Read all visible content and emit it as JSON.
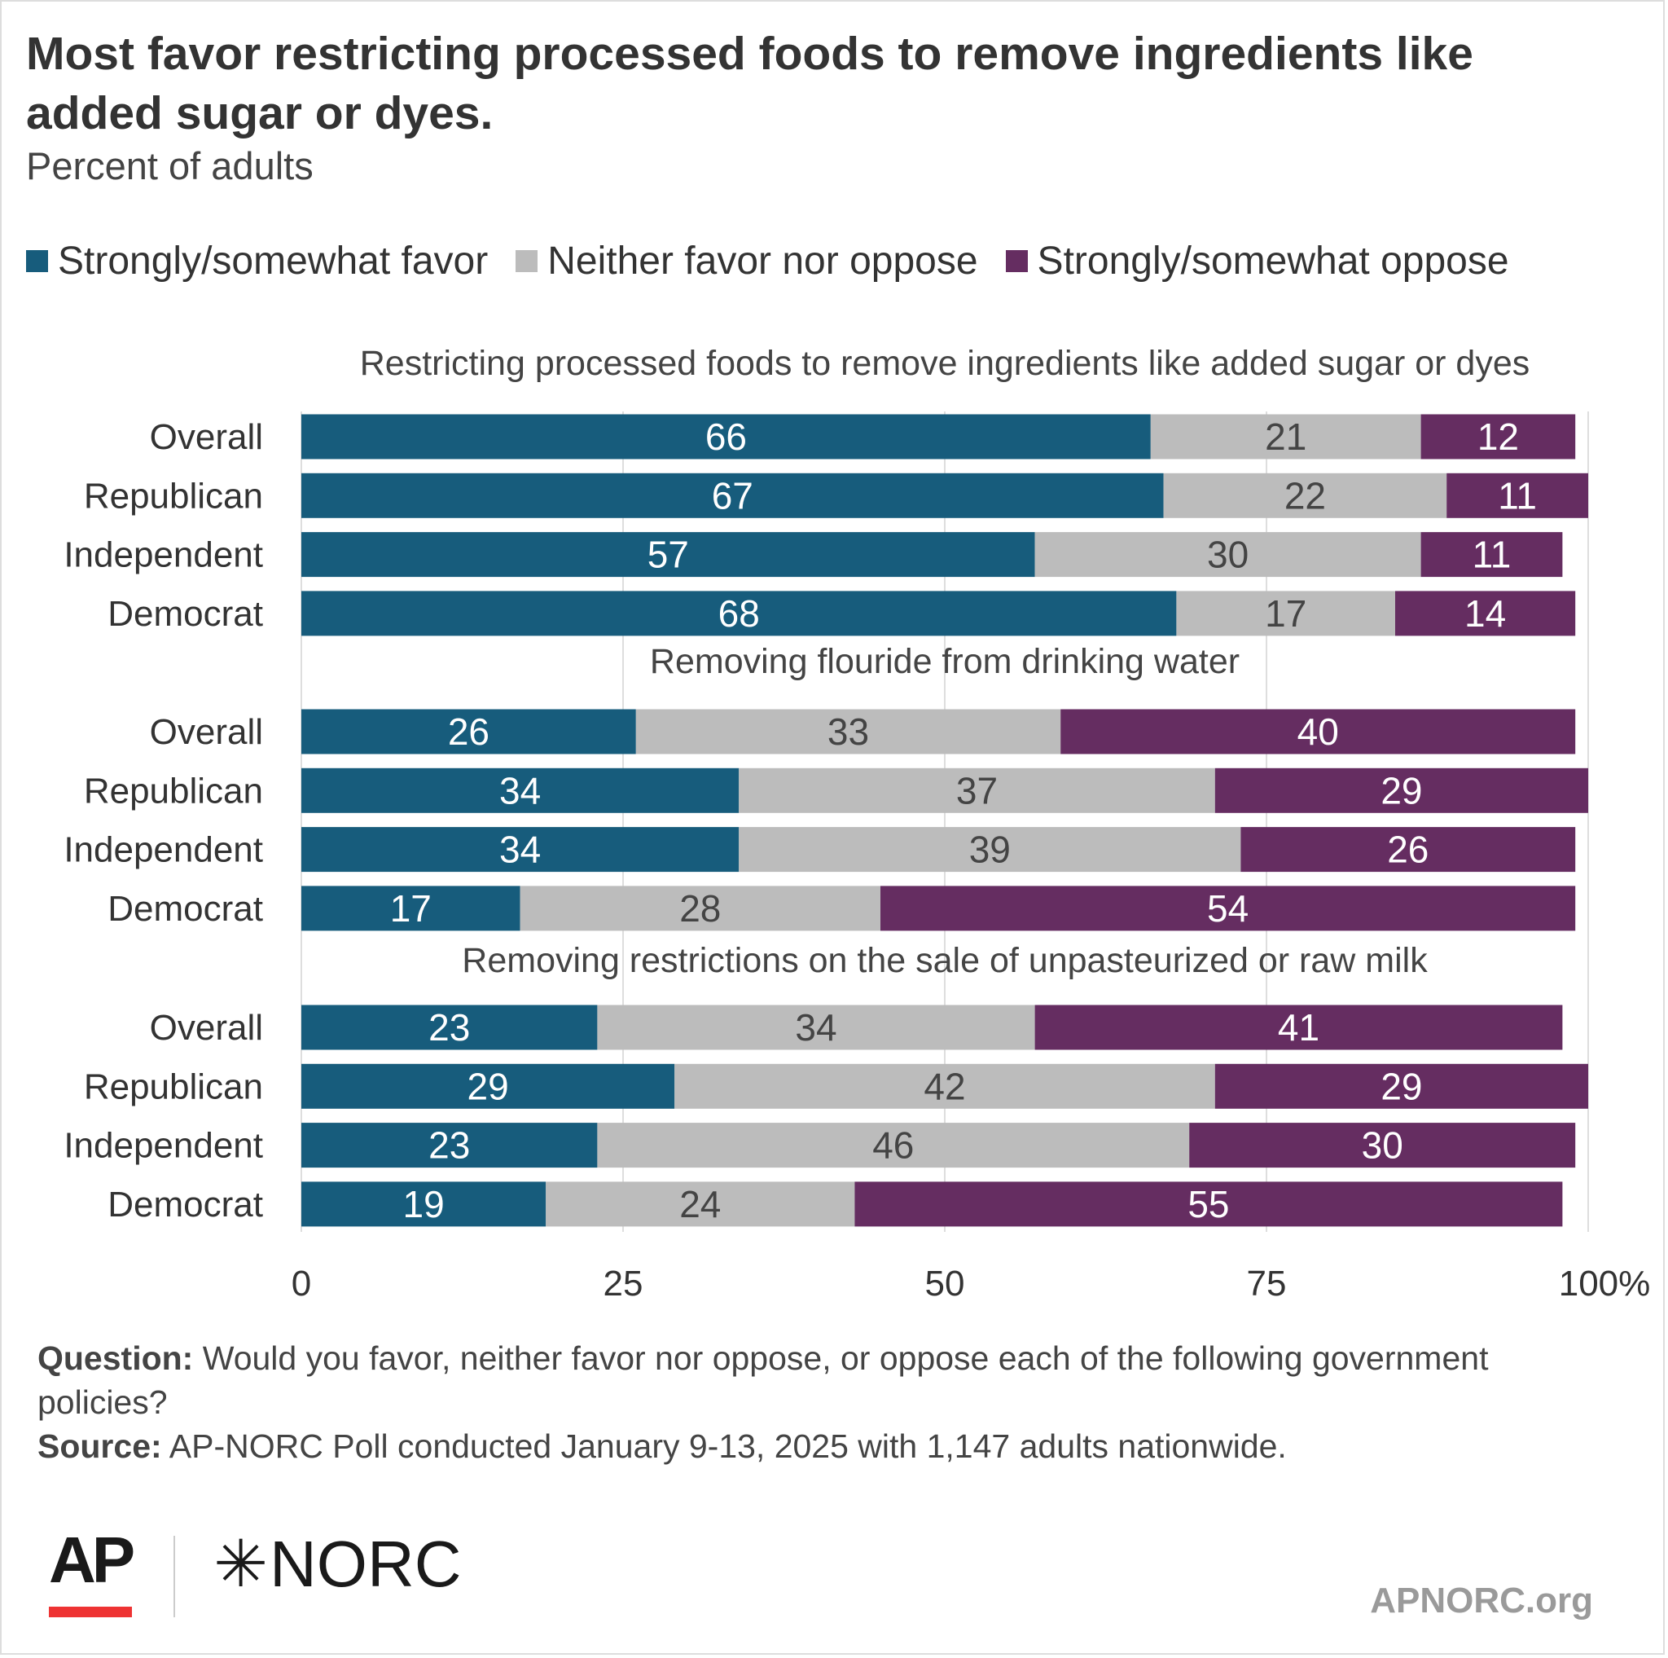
{
  "title": "Most favor restricting processed foods to remove ingredients like added sugar or dyes.",
  "subtitle": "Percent of adults",
  "footnotes": {
    "question_label": "Question:",
    "question_text": "Would you favor, neither favor nor oppose, or oppose each of the following government policies?",
    "source_label": "Source:",
    "source_text": "AP-NORC Poll conducted January 9-13, 2025 with 1,147 adults nationwide."
  },
  "branding": {
    "ap_logo": "AP",
    "norc_logo": "NORC",
    "norc_star": "✳",
    "site": "APNORC.org"
  },
  "chart_data": {
    "type": "bar",
    "orientation": "horizontal",
    "stacked": true,
    "legend_position": "top-left",
    "grid": true,
    "xlim": [
      0,
      100
    ],
    "x_ticks": [
      "0",
      "25",
      "50",
      "75",
      "100%"
    ],
    "x_tick_values": [
      0,
      25,
      50,
      75,
      100
    ],
    "series": [
      {
        "name": "Strongly/somewhat favor",
        "color": "#175c7c"
      },
      {
        "name": "Neither favor nor oppose",
        "color": "#bcbcbc"
      },
      {
        "name": "Strongly/somewhat oppose",
        "color": "#652d61"
      }
    ],
    "groups": [
      {
        "title": "Restricting processed foods to remove ingredients like added sugar or dyes",
        "rows": [
          {
            "label": "Overall",
            "values": [
              66,
              21,
              12
            ]
          },
          {
            "label": "Republican",
            "values": [
              67,
              22,
              11
            ]
          },
          {
            "label": "Independent",
            "values": [
              57,
              30,
              11
            ]
          },
          {
            "label": "Democrat",
            "values": [
              68,
              17,
              14
            ]
          }
        ]
      },
      {
        "title": "Removing flouride from drinking water",
        "rows": [
          {
            "label": "Overall",
            "values": [
              26,
              33,
              40
            ]
          },
          {
            "label": "Republican",
            "values": [
              34,
              37,
              29
            ]
          },
          {
            "label": "Independent",
            "values": [
              34,
              39,
              26
            ]
          },
          {
            "label": "Democrat",
            "values": [
              17,
              28,
              54
            ]
          }
        ]
      },
      {
        "title": "Removing restrictions on the sale of unpasteurized or raw milk",
        "rows": [
          {
            "label": "Overall",
            "values": [
              23,
              34,
              41
            ]
          },
          {
            "label": "Republican",
            "values": [
              29,
              42,
              29
            ]
          },
          {
            "label": "Independent",
            "values": [
              23,
              46,
              30
            ]
          },
          {
            "label": "Democrat",
            "values": [
              19,
              24,
              55
            ]
          }
        ]
      }
    ]
  }
}
